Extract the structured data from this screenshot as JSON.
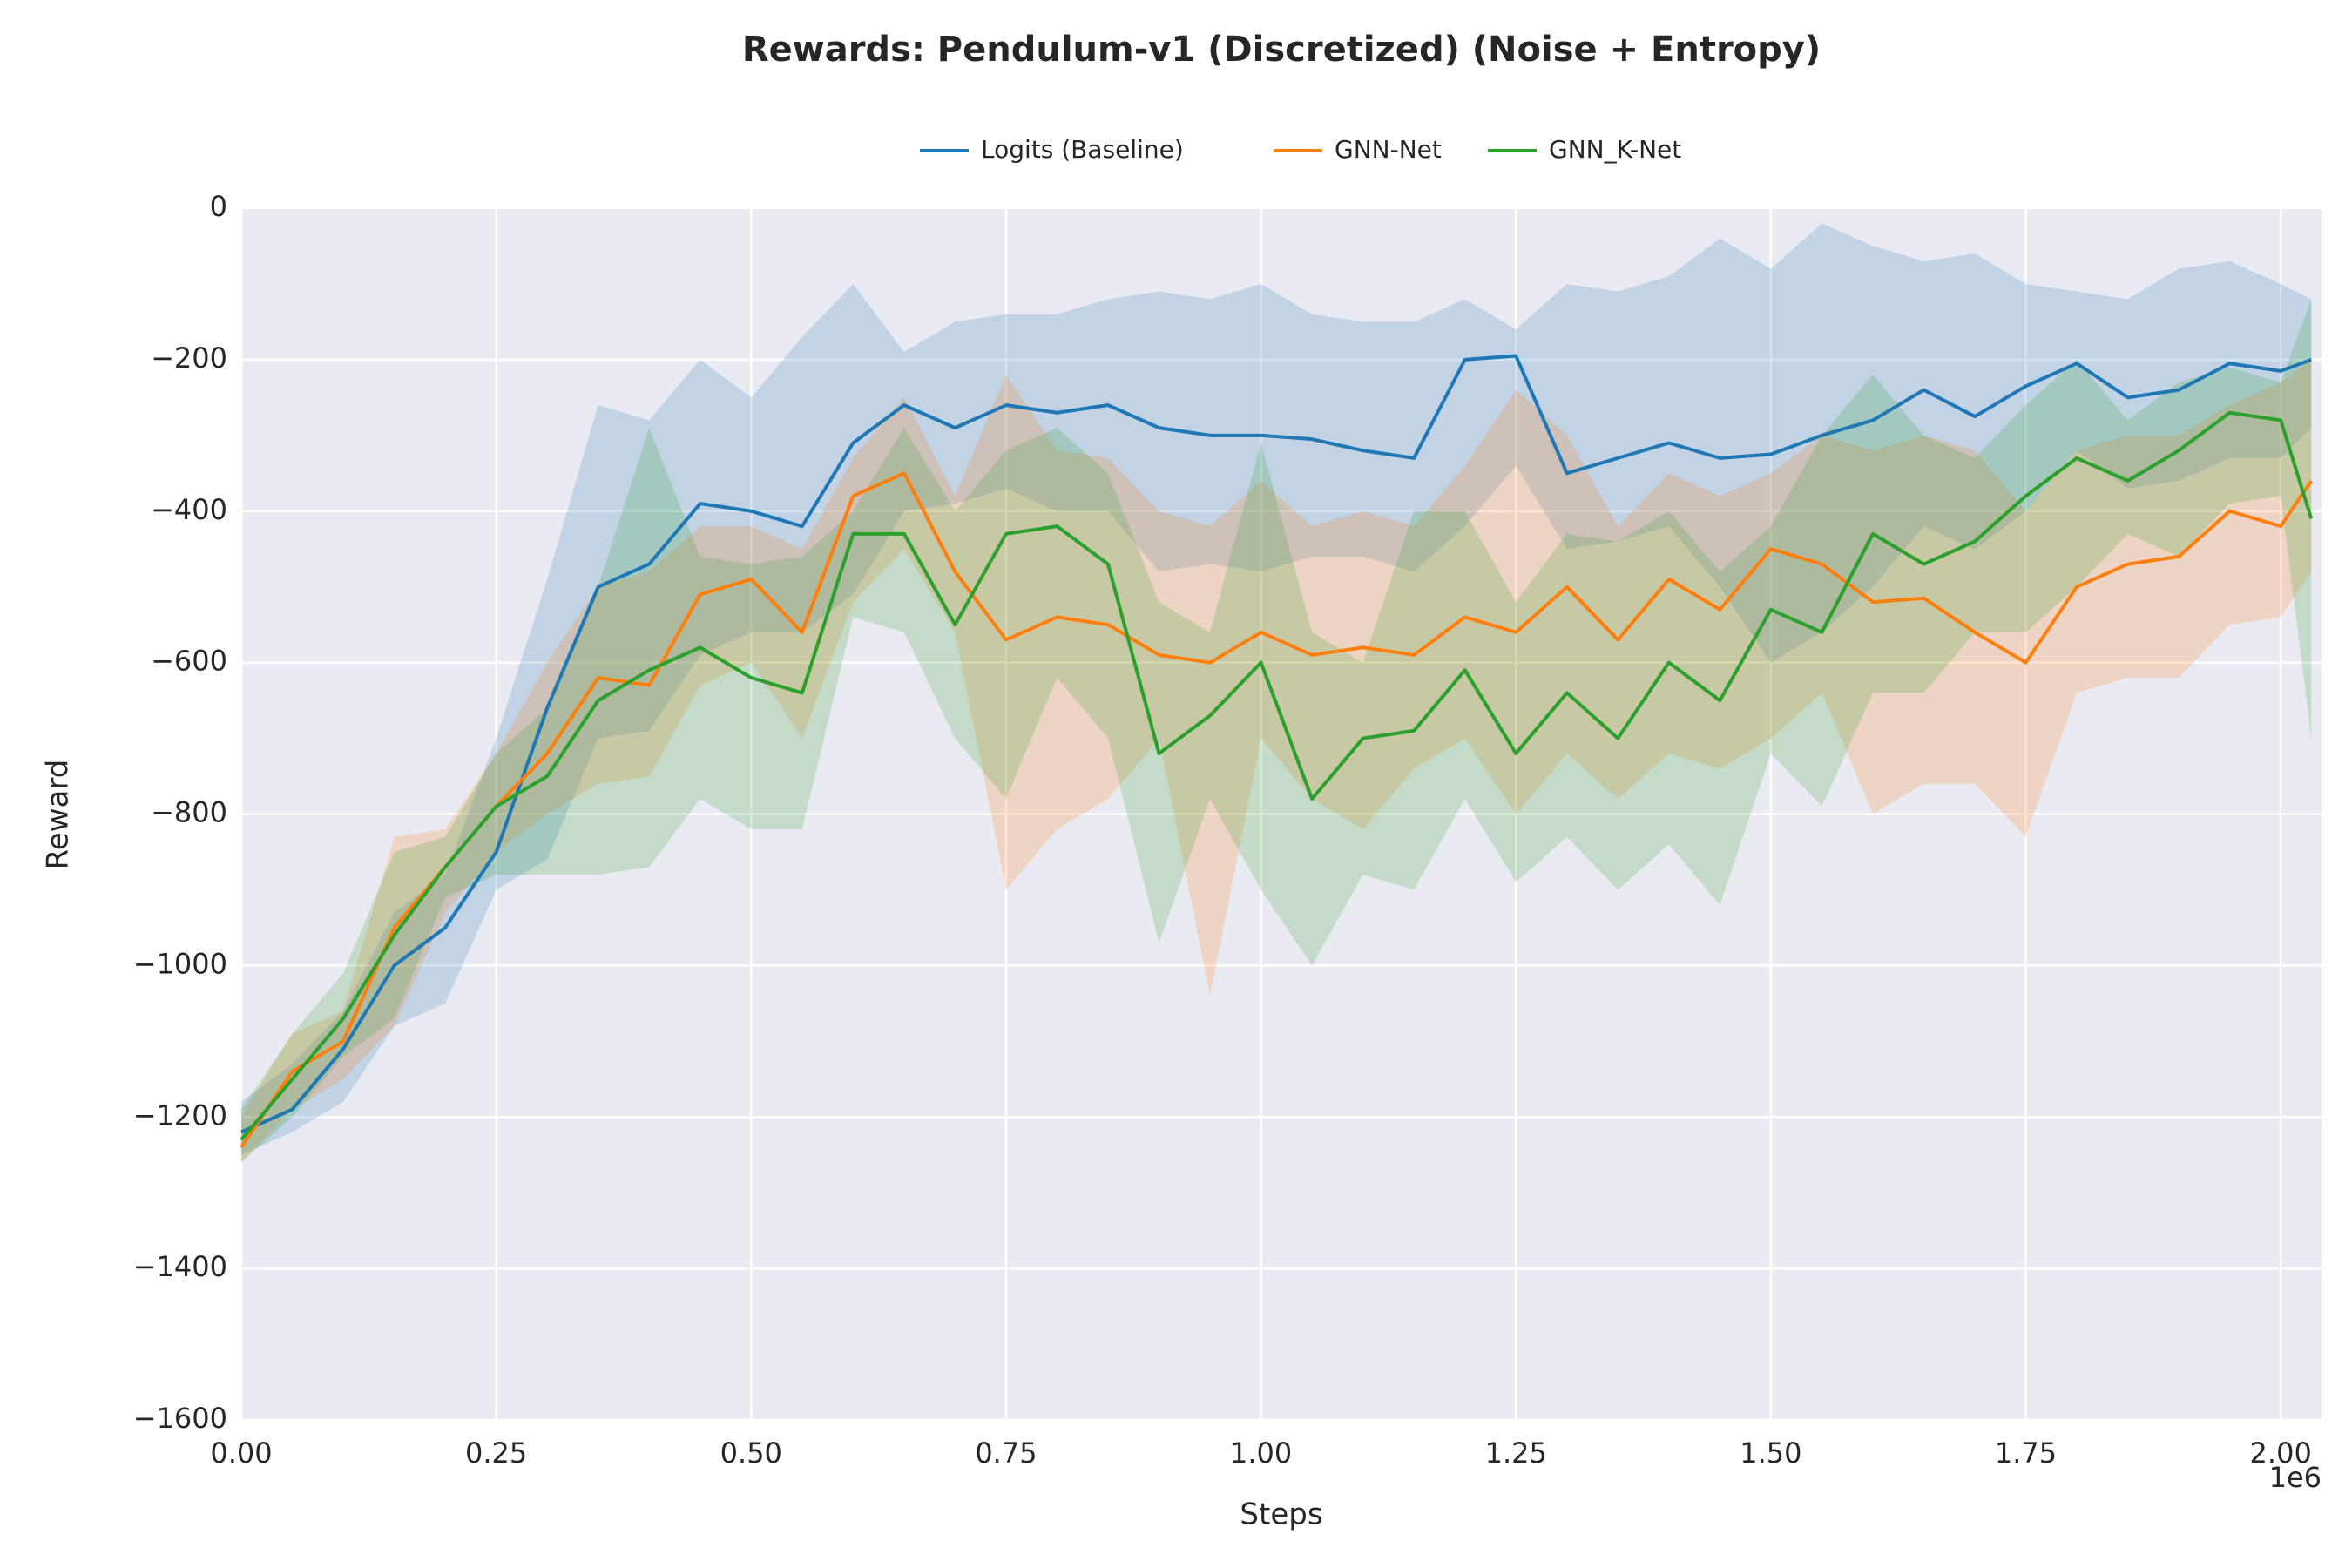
{
  "chart_data": {
    "type": "line",
    "title": "Rewards: Pendulum-v1 (Discretized) (Noise + Entropy)",
    "x_label": "Steps",
    "y_label": "Reward",
    "x_offset_label": "1e6",
    "legend": "upper center",
    "grid": true,
    "x": [
      0,
      50000,
      100000,
      150000,
      200000,
      250000,
      300000,
      350000,
      400000,
      450000,
      500000,
      550000,
      600000,
      650000,
      700000,
      750000,
      800000,
      850000,
      900000,
      950000,
      1000000,
      1050000,
      1100000,
      1150000,
      1200000,
      1250000,
      1300000,
      1350000,
      1400000,
      1450000,
      1500000,
      1550000,
      1600000,
      1650000,
      1700000,
      1750000,
      1800000,
      1850000,
      1900000,
      1950000,
      2000000,
      2030000
    ],
    "xlim": [
      0,
      2040000
    ],
    "xticks": [
      {
        "value": 0,
        "label": "0.00"
      },
      {
        "value": 250000,
        "label": "0.25"
      },
      {
        "value": 500000,
        "label": "0.50"
      },
      {
        "value": 750000,
        "label": "0.75"
      },
      {
        "value": 1000000,
        "label": "1.00"
      },
      {
        "value": 1250000,
        "label": "1.25"
      },
      {
        "value": 1500000,
        "label": "1.50"
      },
      {
        "value": 1750000,
        "label": "1.75"
      },
      {
        "value": 2000000,
        "label": "2.00"
      }
    ],
    "ylim": [
      -1600,
      0
    ],
    "yticks": [
      {
        "value": -1600,
        "label": "−1600"
      },
      {
        "value": -1400,
        "label": "−1400"
      },
      {
        "value": -1200,
        "label": "−1200"
      },
      {
        "value": -1000,
        "label": "−1000"
      },
      {
        "value": -800,
        "label": "−800"
      },
      {
        "value": -600,
        "label": "−600"
      },
      {
        "value": -400,
        "label": "−400"
      },
      {
        "value": -200,
        "label": "−200"
      },
      0
    ],
    "series": [
      {
        "name": "Logits (Baseline)",
        "color": "#1f77b4",
        "values": [
          -1220,
          -1190,
          -1110,
          -1000,
          -950,
          -850,
          -660,
          -500,
          -470,
          -390,
          -400,
          -420,
          -310,
          -260,
          -290,
          -260,
          -270,
          -260,
          -290,
          -300,
          -300,
          -305,
          -320,
          -330,
          -200,
          -195,
          -350,
          -330,
          -310,
          -330,
          -325,
          -300,
          -280,
          -240,
          -275,
          -235,
          -205,
          -250,
          -240,
          -205,
          -215,
          -200
        ],
        "upper": [
          -1180,
          -1130,
          -1060,
          -930,
          -880,
          -700,
          -490,
          -260,
          -280,
          -200,
          -250,
          -170,
          -100,
          -190,
          -150,
          -140,
          -140,
          -120,
          -110,
          -120,
          -100,
          -140,
          -150,
          -150,
          -120,
          -160,
          -100,
          -110,
          -90,
          -40,
          -80,
          -20,
          -50,
          -70,
          -60,
          -100,
          -110,
          -120,
          -80,
          -70,
          -100,
          -120
        ],
        "lower": [
          -1250,
          -1220,
          -1180,
          -1080,
          -1050,
          -900,
          -860,
          -700,
          -690,
          -590,
          -560,
          -560,
          -510,
          -400,
          -390,
          -370,
          -400,
          -400,
          -480,
          -470,
          -480,
          -460,
          -460,
          -480,
          -420,
          -340,
          -450,
          -440,
          -420,
          -500,
          -600,
          -560,
          -500,
          -420,
          -450,
          -400,
          -320,
          -370,
          -360,
          -330,
          -330,
          -290
        ]
      },
      {
        "name": "GNN-Net",
        "color": "#ff7f0e",
        "values": [
          -1240,
          -1140,
          -1100,
          -950,
          -870,
          -790,
          -720,
          -620,
          -630,
          -510,
          -490,
          -560,
          -380,
          -350,
          -480,
          -570,
          -540,
          -550,
          -590,
          -600,
          -560,
          -590,
          -580,
          -590,
          -540,
          -560,
          -500,
          -570,
          -490,
          -530,
          -450,
          -470,
          -520,
          -515,
          -560,
          -600,
          -500,
          -470,
          -460,
          -400,
          -420,
          -360
        ],
        "upper": [
          -1200,
          -1090,
          -1060,
          -830,
          -820,
          -720,
          -600,
          -500,
          -480,
          -420,
          -420,
          -450,
          -330,
          -250,
          -380,
          -220,
          -320,
          -330,
          -400,
          -420,
          -360,
          -420,
          -400,
          -420,
          -340,
          -240,
          -300,
          -420,
          -350,
          -380,
          -350,
          -300,
          -320,
          -300,
          -320,
          -400,
          -320,
          -300,
          -300,
          -260,
          -230,
          -200
        ],
        "lower": [
          -1260,
          -1190,
          -1150,
          -1080,
          -930,
          -850,
          -800,
          -760,
          -750,
          -630,
          -600,
          -700,
          -520,
          -450,
          -560,
          -900,
          -820,
          -780,
          -700,
          -1040,
          -700,
          -780,
          -820,
          -740,
          -700,
          -800,
          -720,
          -780,
          -720,
          -740,
          -700,
          -640,
          -800,
          -760,
          -760,
          -830,
          -640,
          -620,
          -620,
          -550,
          -540,
          -480
        ]
      },
      {
        "name": "GNN_K-Net",
        "color": "#2ca02c",
        "values": [
          -1230,
          -1150,
          -1070,
          -960,
          -870,
          -790,
          -750,
          -650,
          -610,
          -580,
          -620,
          -640,
          -430,
          -430,
          -550,
          -430,
          -420,
          -470,
          -720,
          -670,
          -600,
          -780,
          -700,
          -690,
          -610,
          -720,
          -640,
          -700,
          -600,
          -650,
          -530,
          -560,
          -430,
          -470,
          -440,
          -380,
          -330,
          -360,
          -320,
          -270,
          -280,
          -410
        ],
        "upper": [
          -1190,
          -1090,
          -1010,
          -850,
          -830,
          -720,
          -660,
          -500,
          -290,
          -460,
          -470,
          -460,
          -400,
          -290,
          -400,
          -320,
          -290,
          -350,
          -520,
          -560,
          -310,
          -560,
          -600,
          -400,
          -400,
          -520,
          -430,
          -440,
          -400,
          -480,
          -420,
          -300,
          -220,
          -300,
          -330,
          -260,
          -200,
          -280,
          -230,
          -210,
          -230,
          -120
        ],
        "lower": [
          -1260,
          -1200,
          -1120,
          -1070,
          -910,
          -880,
          -880,
          -880,
          -870,
          -780,
          -820,
          -820,
          -540,
          -560,
          -700,
          -780,
          -620,
          -700,
          -970,
          -780,
          -900,
          -1000,
          -880,
          -900,
          -780,
          -890,
          -830,
          -900,
          -840,
          -920,
          -720,
          -790,
          -640,
          -640,
          -560,
          -560,
          -500,
          -430,
          -460,
          -390,
          -380,
          -700
        ]
      }
    ]
  }
}
